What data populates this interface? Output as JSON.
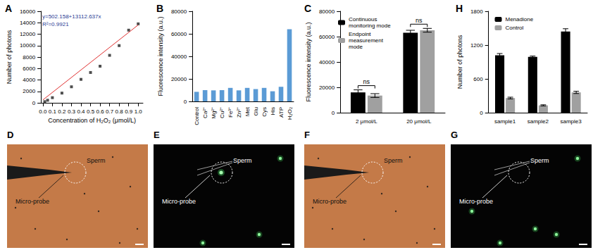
{
  "chart_data": [
    {
      "type": "scatter",
      "title": "A",
      "x_label": "Concentration of H₂O₂ (μmol/L)",
      "y_label": "Number of photons",
      "series": [
        {
          "type": "scatter",
          "color": "#222222",
          "marker": "square",
          "x": [
            0.02,
            0.05,
            0.1,
            0.2,
            0.3,
            0.4,
            0.5,
            0.6,
            0.7,
            0.8,
            0.9,
            1.0
          ],
          "values": [
            200,
            450,
            900,
            1700,
            2800,
            4100,
            5300,
            6400,
            8300,
            10000,
            12700,
            13800
          ]
        },
        {
          "type": "line",
          "color": "#e03030",
          "line_style": "solid",
          "x": [
            0,
            1.0
          ],
          "values": [
            502,
            13615
          ]
        }
      ],
      "xlim": [
        -0.02,
        1.05
      ],
      "xticks": [
        {
          "value": 0,
          "label": "0.0"
        },
        0.1,
        0.2,
        0.3,
        0.4,
        0.5,
        0.6,
        0.7,
        0.8,
        0.9,
        {
          "value": 1,
          "label": "1.0"
        }
      ],
      "ylim": [
        0,
        16000
      ],
      "yticks": [
        0,
        2000,
        4000,
        6000,
        8000,
        10000,
        12000,
        14000,
        16000
      ],
      "annotations": [
        "y=502.158+13112.637x",
        "R²=0.9921"
      ],
      "grid": false
    },
    {
      "type": "bar",
      "title": "B",
      "y_label": "Fluorescence intensity (a.u.)",
      "categories": [
        "Control",
        "Ca²⁺",
        "Mg²⁺",
        "Cu²⁺",
        "Fe³⁺",
        "Zn²⁺",
        "Met",
        "Glu",
        "Cys",
        "His",
        "ATP",
        "H₂O₂"
      ],
      "values": [
        8500,
        10000,
        9800,
        10000,
        12000,
        9800,
        12000,
        11000,
        12000,
        9000,
        13000,
        64000
      ],
      "color": "#5b9bd5",
      "ylim": [
        0,
        80000
      ],
      "yticks": [
        0,
        20000,
        40000,
        60000,
        80000
      ],
      "grid": false
    },
    {
      "type": "bar",
      "title": "C",
      "y_label": "Fluorescence intensity (a.u.)",
      "categories": [
        "2 μmol/L",
        "20 μmol/L"
      ],
      "series": [
        {
          "name": "Continuous monitoring mode",
          "color": "#000000",
          "values": [
            16000,
            63000
          ],
          "errors": [
            2000,
            2000
          ]
        },
        {
          "name": "Endpoint measurement mode",
          "color": "#a0a0a0",
          "values": [
            13500,
            65000
          ],
          "errors": [
            1500,
            1500
          ]
        }
      ],
      "ylim": [
        0,
        80000
      ],
      "yticks": [
        0,
        20000,
        40000,
        60000,
        80000
      ],
      "annotations": [
        {
          "text": "ns",
          "category": "2 μmol/L"
        },
        {
          "text": "ns",
          "category": "20 μmol/L"
        }
      ],
      "legend": "upper left",
      "grid": false
    },
    {
      "type": "bar",
      "title": "H",
      "y_label": "Number of photons",
      "categories": [
        "sample1",
        "sample2",
        "sample3"
      ],
      "series": [
        {
          "name": "Menadione",
          "color": "#000000",
          "values": [
            1020,
            990,
            1440
          ],
          "errors": [
            30,
            15,
            50
          ]
        },
        {
          "name": "Control",
          "color": "#a0a0a0",
          "values": [
            260,
            130,
            360
          ],
          "errors": [
            15,
            10,
            20
          ]
        }
      ],
      "ylim": [
        0,
        1800
      ],
      "yticks": [
        0,
        600,
        1200,
        1800
      ],
      "legend": "upper center",
      "grid": false
    }
  ],
  "images": [
    {
      "title": "D",
      "mode": "brightfield",
      "signal": false,
      "labels": {
        "target": "Sperm",
        "probe": "Micro-probe"
      }
    },
    {
      "title": "E",
      "mode": "fluorescence",
      "signal": true,
      "labels": {
        "target": "Sperm",
        "probe": "Micro-probe"
      }
    },
    {
      "title": "F",
      "mode": "brightfield",
      "signal": false,
      "labels": {
        "target": "Sperm",
        "probe": "Micro-probe"
      }
    },
    {
      "title": "G",
      "mode": "fluorescence",
      "signal": false,
      "labels": {
        "target": "Sperm",
        "probe": "Micro-probe"
      }
    }
  ]
}
